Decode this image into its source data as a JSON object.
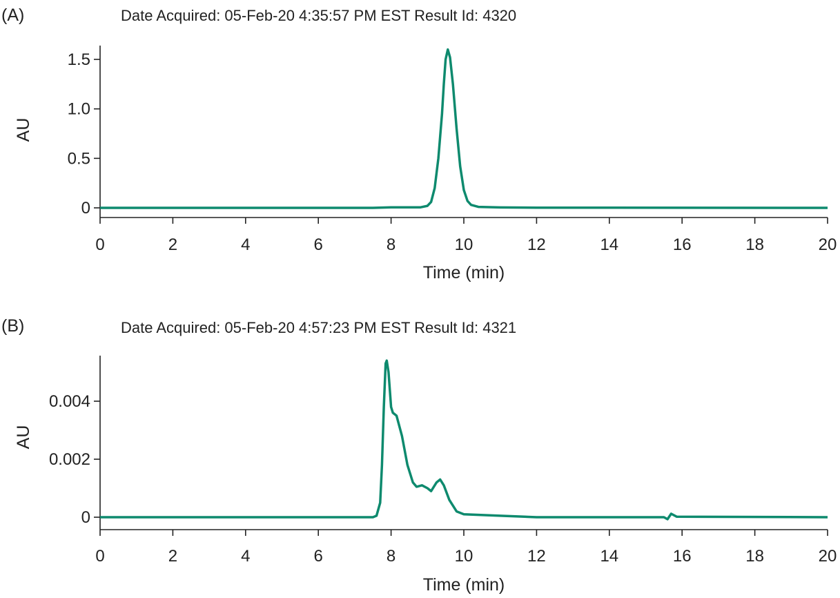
{
  "chart_data": [
    {
      "type": "line",
      "panel_label": "(A)",
      "title": "Date Acquired: 05-Feb-20 4:35:57 PM EST Result Id: 4320",
      "xlabel": "Time (min)",
      "ylabel": "AU",
      "xlim": [
        0,
        20
      ],
      "ylim": [
        0,
        1.6
      ],
      "xticks": [
        0,
        2,
        4,
        6,
        8,
        10,
        12,
        14,
        16,
        18,
        20
      ],
      "yticks": [
        0,
        0.5,
        1.0,
        1.5
      ],
      "ytick_labels": [
        "0",
        "0.5",
        "1.0",
        "1.5"
      ],
      "grid": false,
      "color": "#0e8a6e",
      "points": [
        [
          0,
          0
        ],
        [
          7.5,
          0
        ],
        [
          8,
          0.005
        ],
        [
          8.8,
          0.005
        ],
        [
          9.0,
          0.02
        ],
        [
          9.1,
          0.06
        ],
        [
          9.2,
          0.2
        ],
        [
          9.3,
          0.5
        ],
        [
          9.4,
          0.95
        ],
        [
          9.45,
          1.25
        ],
        [
          9.5,
          1.5
        ],
        [
          9.56,
          1.6
        ],
        [
          9.62,
          1.52
        ],
        [
          9.7,
          1.25
        ],
        [
          9.8,
          0.8
        ],
        [
          9.9,
          0.42
        ],
        [
          10.0,
          0.18
        ],
        [
          10.1,
          0.07
        ],
        [
          10.2,
          0.03
        ],
        [
          10.4,
          0.01
        ],
        [
          11,
          0.004
        ],
        [
          12,
          0.002
        ],
        [
          20,
          0
        ]
      ]
    },
    {
      "type": "line",
      "panel_label": "(B)",
      "title": "Date Acquired: 05-Feb-20 4:57:23 PM EST Result Id: 4321",
      "xlabel": "Time (min)",
      "ylabel": "AU",
      "xlim": [
        0,
        20
      ],
      "ylim": [
        0,
        0.0054
      ],
      "xticks": [
        0,
        2,
        4,
        6,
        8,
        10,
        12,
        14,
        16,
        18,
        20
      ],
      "yticks": [
        0,
        0.002,
        0.004
      ],
      "ytick_labels": [
        "0",
        "0.002",
        "0.004"
      ],
      "grid": false,
      "color": "#0e8a6e",
      "points": [
        [
          0,
          0
        ],
        [
          7.5,
          0
        ],
        [
          7.6,
          5e-05
        ],
        [
          7.7,
          0.0005
        ],
        [
          7.75,
          0.0018
        ],
        [
          7.8,
          0.0038
        ],
        [
          7.85,
          0.0053
        ],
        [
          7.88,
          0.0054
        ],
        [
          7.93,
          0.005
        ],
        [
          8.0,
          0.0038
        ],
        [
          8.05,
          0.0036
        ],
        [
          8.15,
          0.0035
        ],
        [
          8.3,
          0.0028
        ],
        [
          8.45,
          0.0018
        ],
        [
          8.6,
          0.0012
        ],
        [
          8.7,
          0.00105
        ],
        [
          8.85,
          0.0011
        ],
        [
          9.0,
          0.001
        ],
        [
          9.1,
          0.0009
        ],
        [
          9.25,
          0.0012
        ],
        [
          9.35,
          0.0013
        ],
        [
          9.45,
          0.0011
        ],
        [
          9.6,
          0.0006
        ],
        [
          9.8,
          0.0002
        ],
        [
          10,
          0.0001
        ],
        [
          11,
          5e-05
        ],
        [
          12,
          0
        ],
        [
          15.5,
          0
        ],
        [
          15.6,
          -7e-05
        ],
        [
          15.7,
          0.00012
        ],
        [
          15.85,
          2e-05
        ],
        [
          20,
          0
        ]
      ]
    }
  ]
}
